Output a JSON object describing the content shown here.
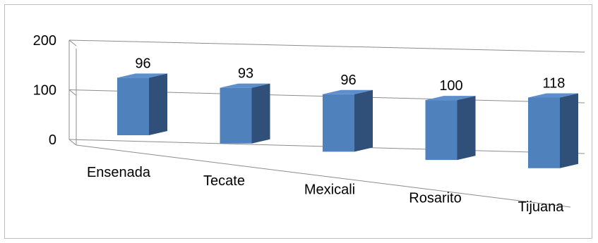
{
  "chart_data": {
    "type": "bar",
    "categories": [
      "Ensenada",
      "Tecate",
      "Mexicali",
      "Rosarito",
      "Tijuana"
    ],
    "values": [
      96,
      93,
      96,
      100,
      118
    ],
    "data_labels": [
      "96",
      "93",
      "96",
      "100",
      "118"
    ],
    "y_ticks": [
      "200",
      "100",
      "0"
    ],
    "ylim": [
      0,
      200
    ],
    "grid": true,
    "legend": "none",
    "colors": {
      "bar_front": "#4f81bd",
      "bar_side": "#30507a",
      "bar_top": "#5c8fcc",
      "gridline": "#8c8c8c"
    }
  }
}
